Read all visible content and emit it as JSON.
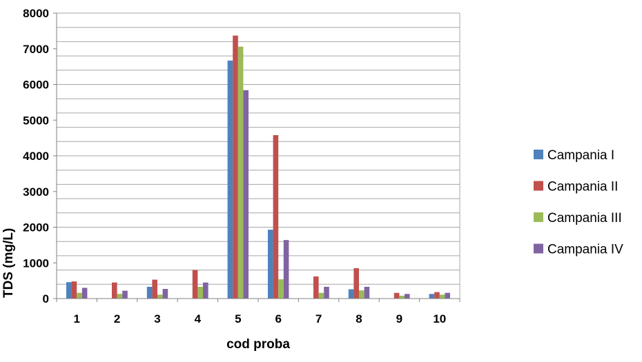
{
  "chart_data": {
    "type": "bar",
    "xlabel": "cod proba",
    "ylabel": "TDS (mg/L)",
    "categories": [
      "1",
      "2",
      "3",
      "4",
      "5",
      "6",
      "7",
      "8",
      "9",
      "10"
    ],
    "ylim": [
      0,
      8000
    ],
    "yticks": [
      0,
      1000,
      2000,
      3000,
      4000,
      5000,
      6000,
      7000,
      8000
    ],
    "grid": true,
    "legend_position": "right",
    "series": [
      {
        "name": "Campania I",
        "color": "#4F81BD",
        "values": [
          460,
          0,
          330,
          0,
          6670,
          1930,
          0,
          260,
          0,
          130
        ]
      },
      {
        "name": "Campania II",
        "color": "#C0504D",
        "values": [
          480,
          450,
          530,
          800,
          7370,
          4580,
          620,
          850,
          160,
          180
        ]
      },
      {
        "name": "Campania III",
        "color": "#9BBB59",
        "values": [
          160,
          130,
          110,
          330,
          7060,
          540,
          160,
          230,
          80,
          110
        ]
      },
      {
        "name": "Campania IV",
        "color": "#8064A2",
        "values": [
          300,
          220,
          270,
          450,
          5840,
          1640,
          330,
          330,
          130,
          160
        ]
      }
    ]
  }
}
